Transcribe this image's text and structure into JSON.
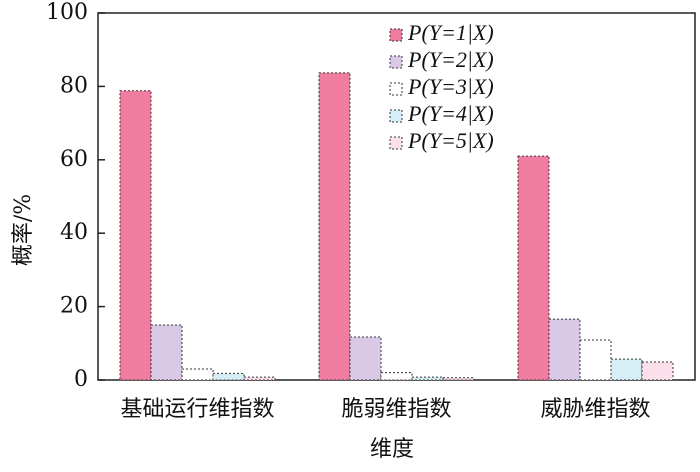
{
  "chart_data": {
    "type": "bar",
    "x_label": "维度",
    "y_label": "概率/%",
    "categories": [
      "基础运行维指数",
      "脆弱维指数",
      "威胁维指数"
    ],
    "series": [
      {
        "name": "P(Y=1|X)",
        "color": "#f07ca0",
        "values": [
          78.8,
          83.7,
          61
        ]
      },
      {
        "name": "P(Y=2|X)",
        "color": "#d9c8e6",
        "values": [
          15,
          11.7,
          16.6
        ]
      },
      {
        "name": "P(Y=3|X)",
        "color": "#ffffff",
        "values": [
          3,
          2,
          10.9
        ]
      },
      {
        "name": "P(Y=4|X)",
        "color": "#d6eef5",
        "values": [
          1.8,
          0.8,
          5.7
        ]
      },
      {
        "name": "P(Y=5|X)",
        "color": "#fbe0ec",
        "values": [
          0.8,
          0.6,
          4.9
        ]
      }
    ],
    "ylim": [
      0,
      100
    ],
    "yticks": [
      0,
      20,
      40,
      60,
      80,
      100
    ],
    "legend": "upper right"
  }
}
